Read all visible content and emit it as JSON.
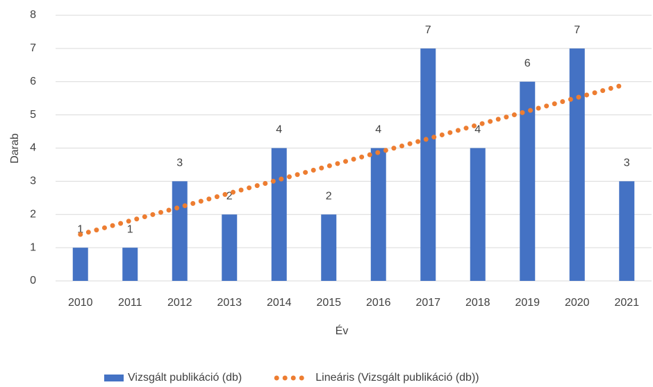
{
  "chart_data": {
    "type": "bar",
    "x_label": "Év",
    "y_label": "Darab",
    "categories": [
      "2010",
      "2011",
      "2012",
      "2013",
      "2014",
      "2015",
      "2016",
      "2017",
      "2018",
      "2019",
      "2020",
      "2021"
    ],
    "series": [
      {
        "name": "Vizsgált publikáció (db)",
        "color": "#4472c4",
        "type": "bar",
        "values": [
          1,
          1,
          3,
          2,
          4,
          2,
          4,
          7,
          4,
          6,
          7,
          3
        ]
      },
      {
        "name": "Lineáris (Vizsgált publikáció (db))",
        "color": "#ed7d31",
        "type": "dotted-line",
        "values": [
          1.4,
          1.81,
          2.22,
          2.64,
          3.05,
          3.46,
          3.87,
          4.28,
          4.7,
          5.11,
          5.52,
          5.93
        ]
      }
    ],
    "ylim": [
      0,
      8
    ],
    "yticks": [
      0,
      1,
      2,
      3,
      4,
      5,
      6,
      7,
      8
    ],
    "grid": true,
    "legend": "bottom"
  }
}
